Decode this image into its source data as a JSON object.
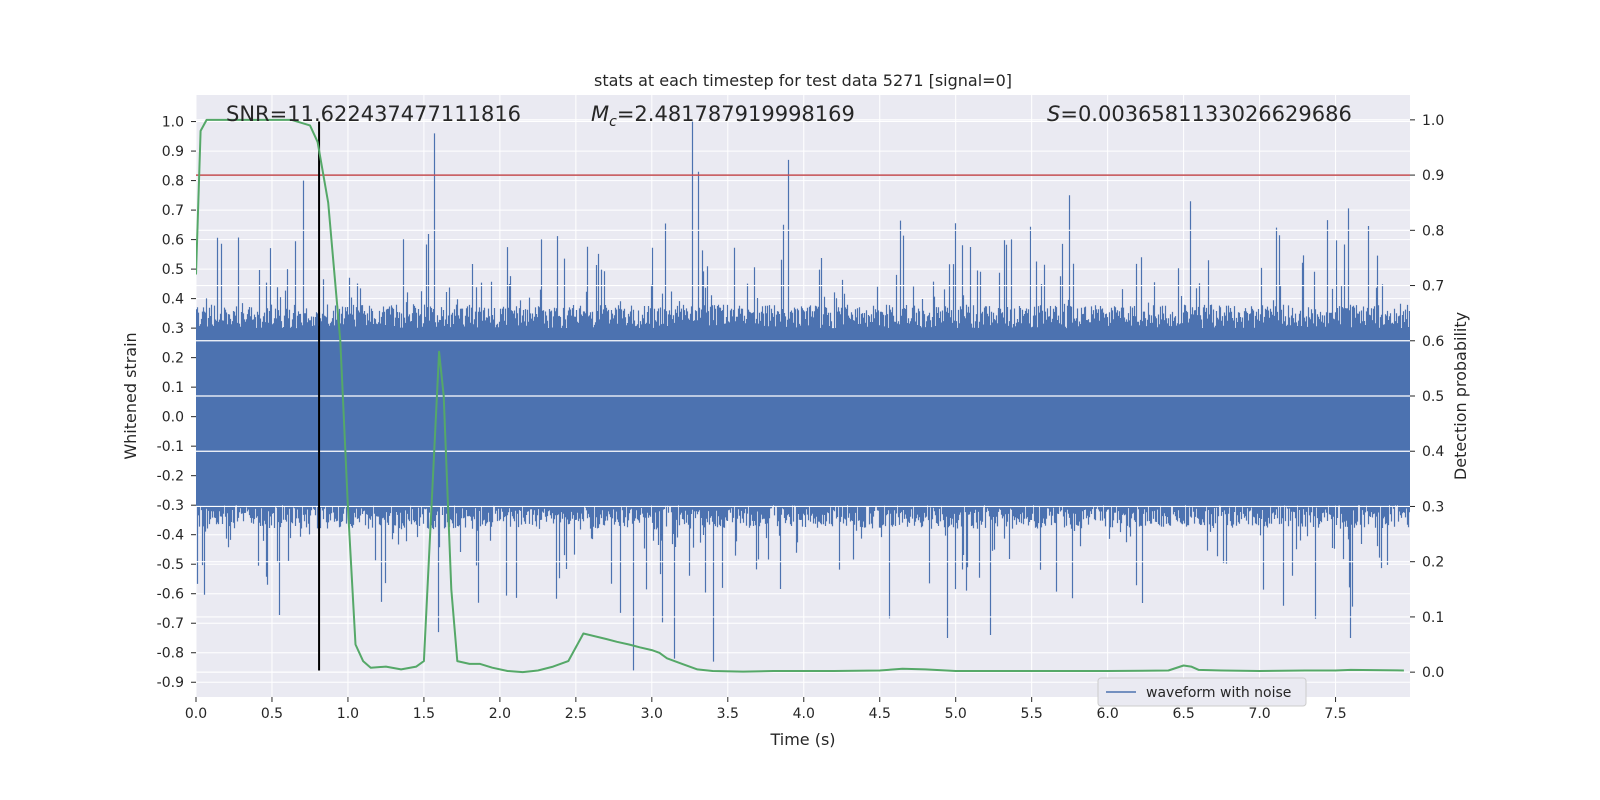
{
  "chart_data": {
    "type": "line",
    "title": "stats at each timestep for test data 5271 [signal=0]",
    "annotations": {
      "snr": "SNR=11.622437477111816",
      "mc_symbol": "M",
      "mc_subscript": "c",
      "mc_value": "=2.481787919998169",
      "s_symbol": "S",
      "s_value": "=0.0036581133026629686"
    },
    "xlabel": "Time (s)",
    "ylabel_left": "Whitened strain",
    "ylabel_right": "Detection probability",
    "xlim": [
      0.0,
      7.99
    ],
    "ylim_left": [
      -0.95,
      1.09
    ],
    "ylim_right": [
      -0.045,
      1.045
    ],
    "x_ticks": [
      "0.0",
      "0.5",
      "1.0",
      "1.5",
      "2.0",
      "2.5",
      "3.0",
      "3.5",
      "4.0",
      "4.5",
      "5.0",
      "5.5",
      "6.0",
      "6.5",
      "7.0",
      "7.5"
    ],
    "y_left_ticks": [
      "1.0",
      "0.9",
      "0.8",
      "0.7",
      "0.6",
      "0.5",
      "0.4",
      "0.3",
      "0.2",
      "0.1",
      "0.0",
      "-0.1",
      "-0.2",
      "-0.3",
      "-0.4",
      "-0.5",
      "-0.6",
      "-0.7",
      "-0.8",
      "-0.9"
    ],
    "y_right_ticks": [
      "1.0",
      "0.9",
      "0.8",
      "0.7",
      "0.6",
      "0.5",
      "0.4",
      "0.3",
      "0.2",
      "0.1",
      "0.0"
    ],
    "grid": true,
    "legend_placement": "lower-right",
    "series": [
      {
        "name": "waveform with noise",
        "axis": "left",
        "color": "#4c72b0",
        "description": "dense noise waveform, envelope approx +/-0.3 to +/-0.6 with spikes up to 1.0",
        "envelope_upper": 0.38,
        "envelope_lower": -0.36,
        "spikes": [
          {
            "x": 0.71,
            "y": 0.8
          },
          {
            "x": 1.57,
            "y": 0.96
          },
          {
            "x": 3.27,
            "y": 1.0
          },
          {
            "x": 3.31,
            "y": 0.83
          },
          {
            "x": 3.9,
            "y": 0.87
          },
          {
            "x": 5.75,
            "y": 0.75
          },
          {
            "x": 6.55,
            "y": 0.73
          },
          {
            "x": 2.88,
            "y": -0.86
          },
          {
            "x": 3.41,
            "y": -0.83
          },
          {
            "x": 3.15,
            "y": -0.82
          },
          {
            "x": 4.95,
            "y": -0.75
          },
          {
            "x": 7.6,
            "y": -0.75
          },
          {
            "x": 1.6,
            "y": -0.73
          },
          {
            "x": 5.23,
            "y": -0.74
          }
        ]
      },
      {
        "axis": "right",
        "color": "#55a868",
        "x": [
          0.0,
          0.03,
          0.07,
          0.13,
          0.2,
          0.35,
          0.5,
          0.63,
          0.75,
          0.8,
          0.87,
          0.95,
          1.0,
          1.05,
          1.1,
          1.15,
          1.25,
          1.35,
          1.45,
          1.5,
          1.55,
          1.6,
          1.63,
          1.68,
          1.72,
          1.8,
          1.87,
          1.95,
          2.05,
          2.15,
          2.25,
          2.35,
          2.45,
          2.55,
          2.7,
          2.77,
          2.85,
          2.92,
          3.0,
          3.05,
          3.1,
          3.2,
          3.3,
          3.4,
          3.6,
          3.8,
          4.2,
          4.5,
          4.65,
          4.8,
          5.0,
          5.5,
          6.0,
          6.4,
          6.5,
          6.55,
          6.6,
          6.75,
          7.0,
          7.3,
          7.5,
          7.6,
          7.95
        ],
        "values": [
          0.72,
          0.98,
          1.0,
          1.0,
          1.0,
          1.0,
          1.0,
          1.0,
          0.99,
          0.96,
          0.85,
          0.6,
          0.3,
          0.05,
          0.02,
          0.008,
          0.01,
          0.005,
          0.01,
          0.02,
          0.3,
          0.58,
          0.5,
          0.15,
          0.02,
          0.015,
          0.015,
          0.008,
          0.002,
          0.0,
          0.003,
          0.01,
          0.02,
          0.07,
          0.06,
          0.055,
          0.05,
          0.045,
          0.04,
          0.035,
          0.025,
          0.015,
          0.005,
          0.002,
          0.001,
          0.002,
          0.002,
          0.003,
          0.006,
          0.005,
          0.002,
          0.002,
          0.002,
          0.003,
          0.012,
          0.01,
          0.004,
          0.003,
          0.002,
          0.003,
          0.003,
          0.004,
          0.003
        ]
      }
    ],
    "threshold_right": 0.9,
    "threshold_color": "#c44e52",
    "vline_x": 0.81,
    "vline_range": [
      -0.86,
      1.0
    ],
    "vline_color": "#000000"
  }
}
